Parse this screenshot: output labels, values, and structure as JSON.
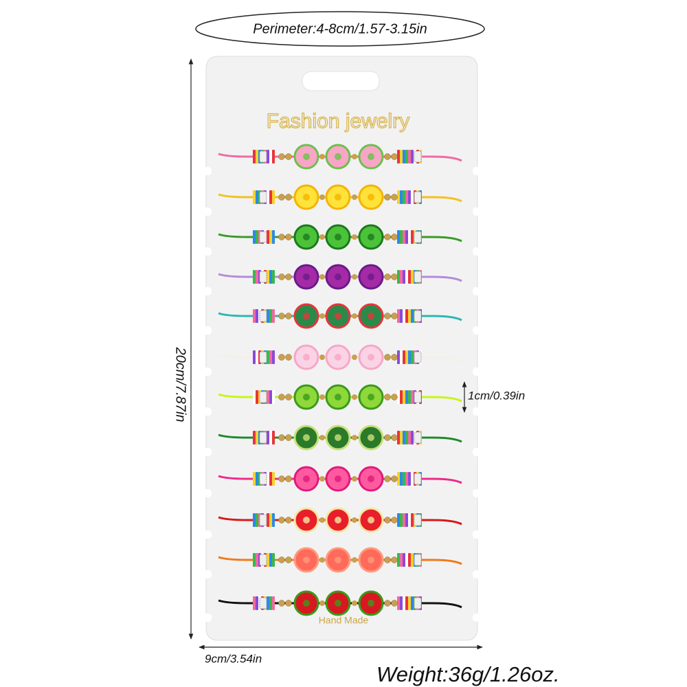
{
  "annotations": {
    "perimeter": "Perimeter:4-8cm/1.57-3.15in",
    "height": "20cm/7.87in",
    "width": "9cm/3.54in",
    "bead_size": "1cm/0.39in",
    "weight": "Weight:36g/1.26oz."
  },
  "card": {
    "brand": "Fashion jewelry",
    "footer": "Hand Made"
  }
}
